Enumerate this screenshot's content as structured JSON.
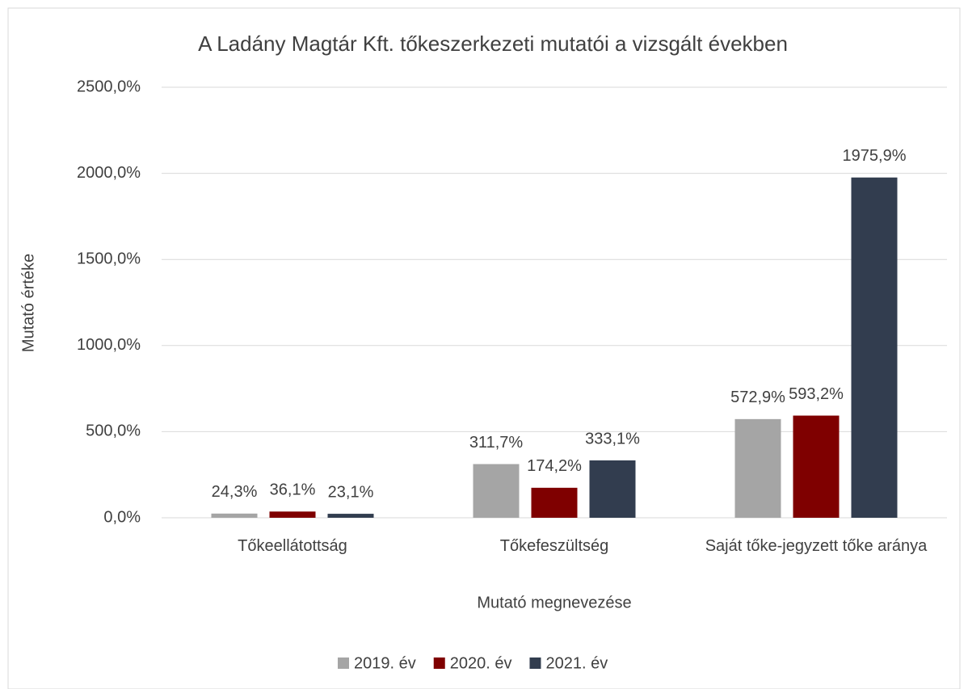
{
  "chart_data": {
    "type": "bar",
    "title": "A Ladány Magtár Kft. tőkeszerkezeti mutatói a vizsgált években",
    "x_label": "Mutató megnevezése",
    "y_label": "Mutató értéke",
    "categories": [
      "Tőkeellátottság",
      "Tőkefeszültség",
      "Saját tőke-jegyzett tőke aránya"
    ],
    "series": [
      {
        "name": "2019. év",
        "color": "#a5a5a5",
        "values": [
          24.3,
          311.7,
          572.9
        ],
        "value_labels": [
          "24,3%",
          "311,7%",
          "572,9%"
        ]
      },
      {
        "name": "2020. év",
        "color": "#7f0000",
        "values": [
          36.1,
          174.2,
          593.2
        ],
        "value_labels": [
          "36,1%",
          "174,2%",
          "593,2%"
        ]
      },
      {
        "name": "2021. év",
        "color": "#323d4f",
        "values": [
          23.1,
          333.1,
          1975.9
        ],
        "value_labels": [
          "23,1%",
          "333,1%",
          "1975,9%"
        ]
      }
    ],
    "ylim": [
      0,
      2500
    ],
    "yticks": [
      {
        "value": 0,
        "label": "0,0%"
      },
      {
        "value": 500,
        "label": "500,0%"
      },
      {
        "value": 1000,
        "label": "1000,0%"
      },
      {
        "value": 1500,
        "label": "1500,0%"
      },
      {
        "value": 2000,
        "label": "2000,0%"
      },
      {
        "value": 2500,
        "label": "2500,0%"
      }
    ],
    "grid": true,
    "legend": "bottom"
  }
}
